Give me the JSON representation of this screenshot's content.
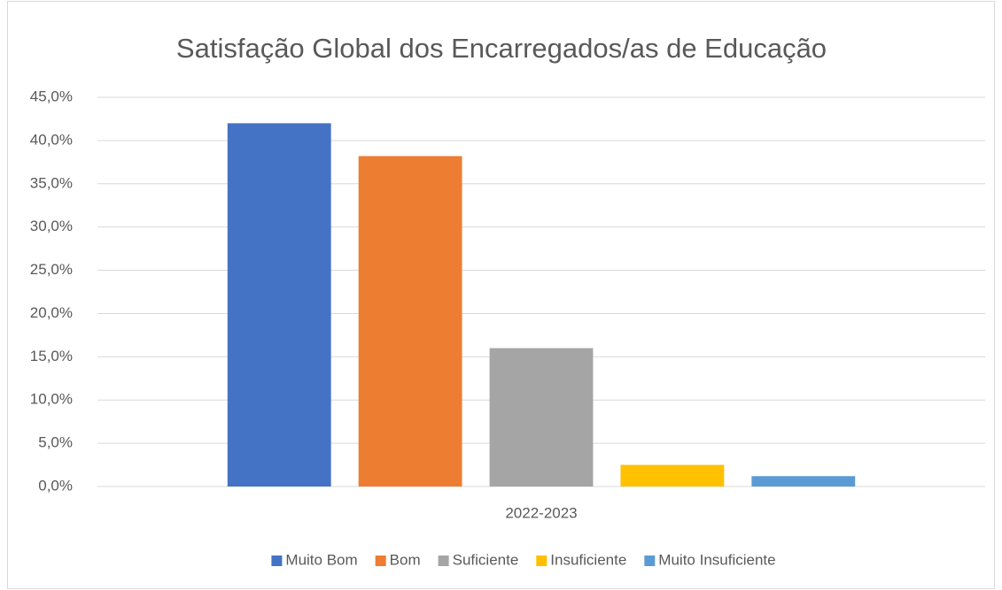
{
  "chart_data": {
    "type": "bar",
    "title": "Satisfação Global dos Encarregados/as de Educação",
    "categories": [
      "2022-2023"
    ],
    "series": [
      {
        "name": "Muito Bom",
        "color": "#4472c4",
        "values": [
          42.0
        ]
      },
      {
        "name": "Bom",
        "color": "#ed7d31",
        "values": [
          38.2
        ]
      },
      {
        "name": "Suficiente",
        "color": "#a5a5a5",
        "values": [
          16.0
        ]
      },
      {
        "name": "Insuficiente",
        "color": "#ffc000",
        "values": [
          2.5
        ]
      },
      {
        "name": "Muito Insuficiente",
        "color": "#5b9bd5",
        "values": [
          1.2
        ]
      }
    ],
    "ylim": [
      0,
      45
    ],
    "yticks": [
      {
        "value": 0,
        "label": "0,0%"
      },
      {
        "value": 5,
        "label": "5,0%"
      },
      {
        "value": 10,
        "label": "10,0%"
      },
      {
        "value": 15,
        "label": "15,0%"
      },
      {
        "value": 20,
        "label": "20,0%"
      },
      {
        "value": 25,
        "label": "25,0%"
      },
      {
        "value": 30,
        "label": "30,0%"
      },
      {
        "value": 35,
        "label": "35,0%"
      },
      {
        "value": 40,
        "label": "40,0%"
      },
      {
        "value": 45,
        "label": "45,0%"
      }
    ],
    "grid": true,
    "legend": "bottom"
  }
}
